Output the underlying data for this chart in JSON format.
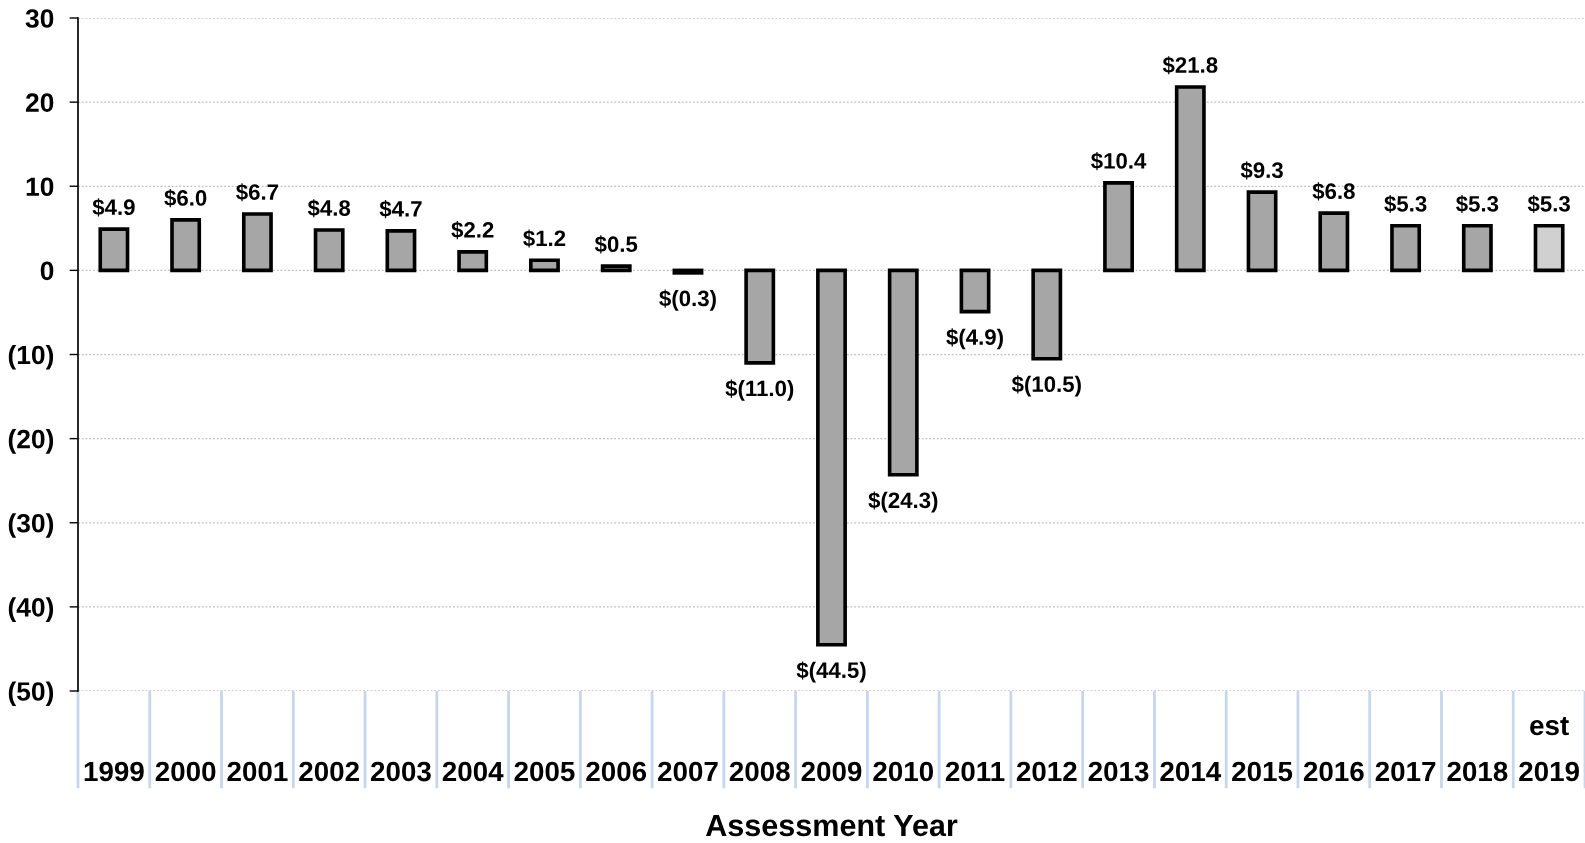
{
  "chart_data": {
    "type": "bar",
    "xlabel": "Assessment Year",
    "categories": [
      "1999",
      "2000",
      "2001",
      "2002",
      "2003",
      "2004",
      "2005",
      "2006",
      "2007",
      "2008",
      "2009",
      "2010",
      "2011",
      "2012",
      "2013",
      "2014",
      "2015",
      "2016",
      "2017",
      "2018",
      "est\n2019"
    ],
    "values": [
      4.9,
      6.0,
      6.7,
      4.8,
      4.7,
      2.2,
      1.2,
      0.5,
      -0.3,
      -11.0,
      -44.5,
      -24.3,
      -4.9,
      -10.5,
      10.4,
      21.8,
      9.3,
      6.8,
      5.3,
      5.3,
      5.3
    ],
    "value_labels": [
      "$4.9",
      "$6.0",
      "$6.7",
      "$4.8",
      "$4.7",
      "$2.2",
      "$1.2",
      "$0.5",
      "$(0.3)",
      "$(11.0)",
      "$(44.5)",
      "$(24.3)",
      "$(4.9)",
      "$(10.5)",
      "$10.4",
      "$21.8",
      "$9.3",
      "$6.8",
      "$5.3",
      "$5.3",
      "$5.3"
    ],
    "colors": [
      "#a6a6a6",
      "#a6a6a6",
      "#a6a6a6",
      "#a6a6a6",
      "#a6a6a6",
      "#a6a6a6",
      "#a6a6a6",
      "#a6a6a6",
      "#a6a6a6",
      "#a6a6a6",
      "#a6a6a6",
      "#a6a6a6",
      "#a6a6a6",
      "#a6a6a6",
      "#a6a6a6",
      "#a6a6a6",
      "#a6a6a6",
      "#a6a6a6",
      "#a6a6a6",
      "#a6a6a6",
      "#d0d0d0"
    ],
    "ylim": [
      -50,
      30
    ],
    "yticks": [
      {
        "value": -50,
        "label": "(50)"
      },
      {
        "value": -40,
        "label": "(40)"
      },
      {
        "value": -30,
        "label": "(30)"
      },
      {
        "value": -20,
        "label": "(20)"
      },
      {
        "value": -10,
        "label": "(10)"
      },
      0,
      10,
      20,
      30
    ],
    "grid": "y"
  }
}
